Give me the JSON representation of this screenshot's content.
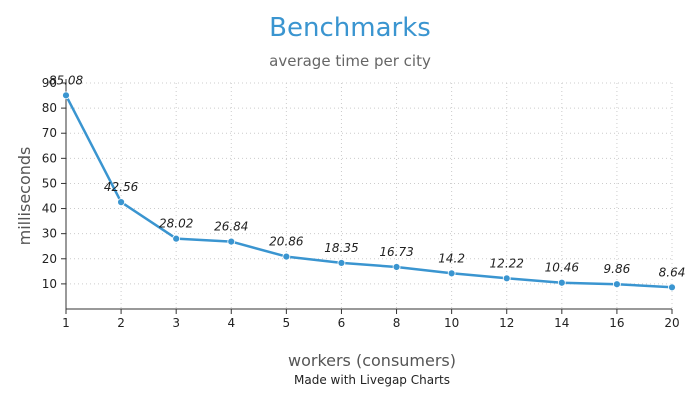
{
  "chart_data": {
    "type": "line",
    "title": "Benchmarks",
    "subtitle": "average time per city",
    "xlabel": "workers (consumers)",
    "ylabel": "milliseconds",
    "x_scale": "categorical",
    "categories": [
      "1",
      "2",
      "3",
      "4",
      "5",
      "6",
      "8",
      "10",
      "12",
      "14",
      "16",
      "20"
    ],
    "values": [
      85.08,
      42.56,
      28.02,
      26.84,
      20.86,
      18.35,
      16.73,
      14.2,
      12.22,
      10.46,
      9.86,
      8.64
    ],
    "data_labels": [
      "85.08",
      "42.56",
      "28.02",
      "26.84",
      "20.86",
      "18.35",
      "16.73",
      "14.2",
      "12.22",
      "10.46",
      "9.86",
      "8.64"
    ],
    "ylim": [
      0,
      90
    ],
    "yticks": [
      "10",
      "20",
      "30",
      "40",
      "50",
      "60",
      "70",
      "80",
      "90"
    ],
    "grid": true,
    "legend": "none",
    "colors": {
      "title": "#3a95d0",
      "line": "#3a95d0",
      "grid": "#cccccc",
      "axis": "#333333"
    }
  },
  "footer": {
    "credit": "Made with Livegap Charts"
  }
}
